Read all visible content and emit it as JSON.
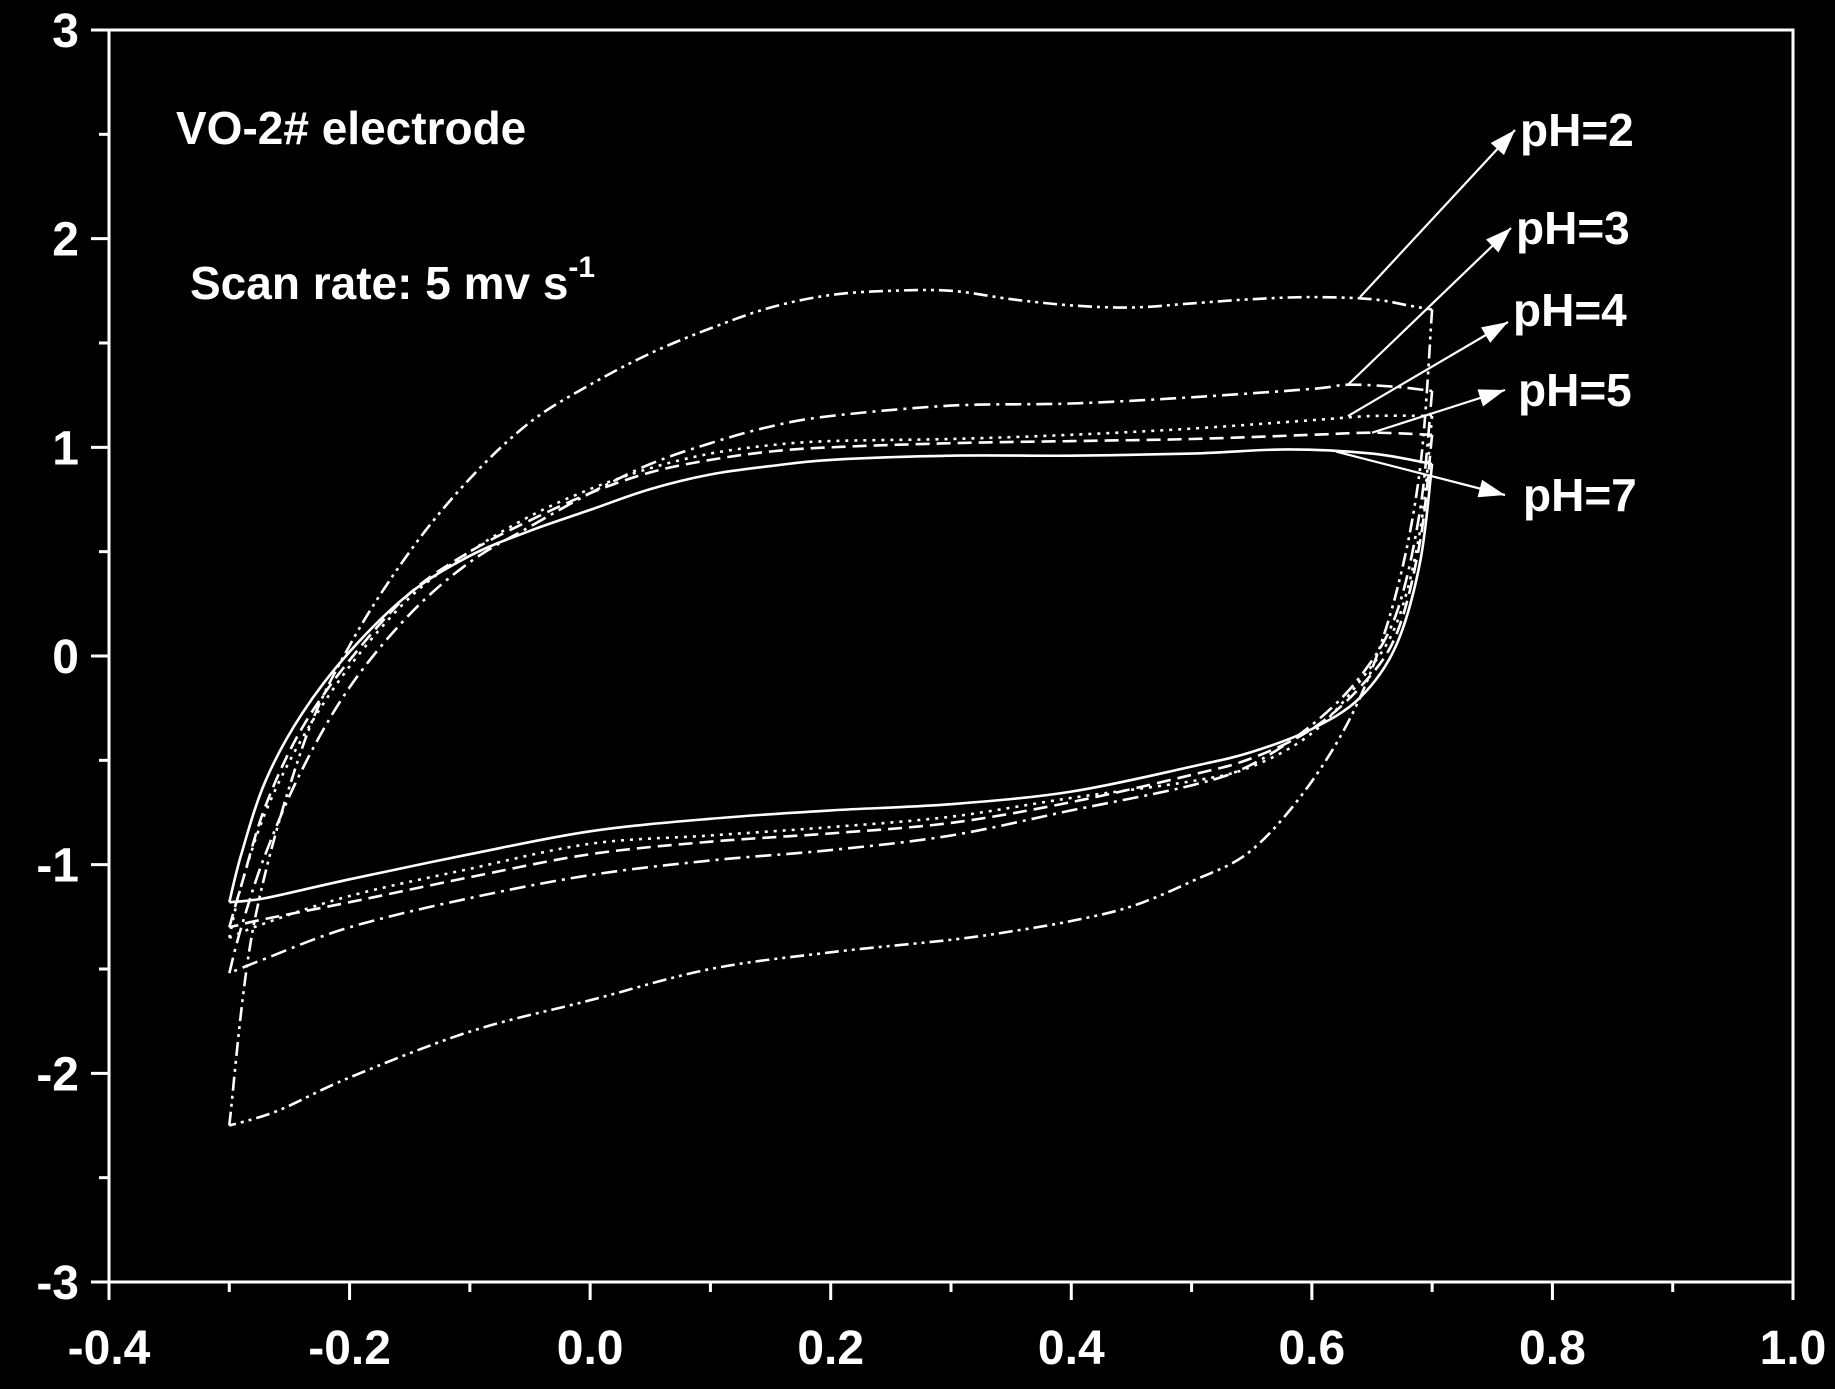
{
  "chart_data": {
    "type": "line",
    "title": "",
    "xlabel": "",
    "ylabel": "",
    "xlim": [
      -0.4,
      1.0
    ],
    "ylim": [
      -3,
      3
    ],
    "x_ticks": [
      "-0.4",
      "-0.2",
      "0.0",
      "0.2",
      "0.4",
      "0.6",
      "0.8",
      "1.0"
    ],
    "y_ticks": [
      "-3",
      "-2",
      "-1",
      "0",
      "1",
      "2",
      "3"
    ],
    "grid": false,
    "background_color": "#000000",
    "foreground_color": "#ffffff",
    "annotations": {
      "electrode": "VO-2# electrode",
      "scan_rate": "Scan rate: 5 mv s",
      "scan_rate_superscript": "-1"
    },
    "series": [
      {
        "name": "pH=2",
        "dash": "dash-dot-dot",
        "upper": [
          [
            -0.3,
            -2.25
          ],
          [
            -0.28,
            -1.3
          ],
          [
            -0.24,
            -0.45
          ],
          [
            -0.2,
            0.05
          ],
          [
            -0.15,
            0.5
          ],
          [
            -0.1,
            0.85
          ],
          [
            -0.05,
            1.12
          ],
          [
            0.0,
            1.3
          ],
          [
            0.05,
            1.45
          ],
          [
            0.1,
            1.57
          ],
          [
            0.15,
            1.67
          ],
          [
            0.2,
            1.73
          ],
          [
            0.25,
            1.75
          ],
          [
            0.3,
            1.75
          ],
          [
            0.35,
            1.71
          ],
          [
            0.4,
            1.68
          ],
          [
            0.45,
            1.67
          ],
          [
            0.5,
            1.69
          ],
          [
            0.55,
            1.71
          ],
          [
            0.6,
            1.72
          ],
          [
            0.65,
            1.71
          ],
          [
            0.68,
            1.68
          ],
          [
            0.7,
            1.66
          ]
        ],
        "lower": [
          [
            0.7,
            1.66
          ],
          [
            0.69,
            0.9
          ],
          [
            0.67,
            0.3
          ],
          [
            0.64,
            -0.2
          ],
          [
            0.6,
            -0.6
          ],
          [
            0.55,
            -0.93
          ],
          [
            0.5,
            -1.08
          ],
          [
            0.45,
            -1.2
          ],
          [
            0.4,
            -1.27
          ],
          [
            0.35,
            -1.32
          ],
          [
            0.3,
            -1.36
          ],
          [
            0.2,
            -1.42
          ],
          [
            0.1,
            -1.5
          ],
          [
            0.0,
            -1.65
          ],
          [
            -0.1,
            -1.8
          ],
          [
            -0.2,
            -2.02
          ],
          [
            -0.26,
            -2.18
          ],
          [
            -0.3,
            -2.25
          ]
        ]
      },
      {
        "name": "pH=3",
        "dash": "dash-dot",
        "upper": [
          [
            -0.3,
            -1.52
          ],
          [
            -0.29,
            -1.3
          ],
          [
            -0.27,
            -0.95
          ],
          [
            -0.24,
            -0.55
          ],
          [
            -0.2,
            -0.15
          ],
          [
            -0.15,
            0.2
          ],
          [
            -0.1,
            0.45
          ],
          [
            -0.05,
            0.62
          ],
          [
            0.0,
            0.78
          ],
          [
            0.05,
            0.92
          ],
          [
            0.1,
            1.02
          ],
          [
            0.15,
            1.1
          ],
          [
            0.2,
            1.15
          ],
          [
            0.3,
            1.2
          ],
          [
            0.4,
            1.21
          ],
          [
            0.5,
            1.24
          ],
          [
            0.6,
            1.28
          ],
          [
            0.63,
            1.3
          ],
          [
            0.67,
            1.29
          ],
          [
            0.7,
            1.27
          ]
        ],
        "lower": [
          [
            0.7,
            1.27
          ],
          [
            0.69,
            0.7
          ],
          [
            0.67,
            0.2
          ],
          [
            0.64,
            -0.1
          ],
          [
            0.6,
            -0.33
          ],
          [
            0.55,
            -0.52
          ],
          [
            0.5,
            -0.62
          ],
          [
            0.4,
            -0.74
          ],
          [
            0.3,
            -0.86
          ],
          [
            0.2,
            -0.93
          ],
          [
            0.1,
            -0.98
          ],
          [
            0.0,
            -1.05
          ],
          [
            -0.1,
            -1.16
          ],
          [
            -0.2,
            -1.3
          ],
          [
            -0.27,
            -1.45
          ],
          [
            -0.3,
            -1.52
          ]
        ]
      },
      {
        "name": "pH=4",
        "dash": "dot",
        "upper": [
          [
            -0.3,
            -1.35
          ],
          [
            -0.29,
            -1.1
          ],
          [
            -0.27,
            -0.75
          ],
          [
            -0.24,
            -0.4
          ],
          [
            -0.2,
            -0.05
          ],
          [
            -0.15,
            0.28
          ],
          [
            -0.1,
            0.5
          ],
          [
            -0.05,
            0.67
          ],
          [
            0.0,
            0.8
          ],
          [
            0.05,
            0.9
          ],
          [
            0.1,
            0.97
          ],
          [
            0.15,
            1.01
          ],
          [
            0.2,
            1.03
          ],
          [
            0.3,
            1.04
          ],
          [
            0.4,
            1.06
          ],
          [
            0.5,
            1.09
          ],
          [
            0.6,
            1.13
          ],
          [
            0.65,
            1.15
          ],
          [
            0.7,
            1.15
          ]
        ],
        "lower": [
          [
            0.7,
            1.15
          ],
          [
            0.69,
            0.6
          ],
          [
            0.67,
            0.15
          ],
          [
            0.64,
            -0.12
          ],
          [
            0.6,
            -0.37
          ],
          [
            0.55,
            -0.53
          ],
          [
            0.5,
            -0.6
          ],
          [
            0.4,
            -0.68
          ],
          [
            0.3,
            -0.77
          ],
          [
            0.2,
            -0.82
          ],
          [
            0.1,
            -0.86
          ],
          [
            0.0,
            -0.9
          ],
          [
            -0.1,
            -1.02
          ],
          [
            -0.2,
            -1.15
          ],
          [
            -0.27,
            -1.28
          ],
          [
            -0.3,
            -1.35
          ]
        ]
      },
      {
        "name": "pH=5",
        "dash": "dash",
        "upper": [
          [
            -0.3,
            -1.3
          ],
          [
            -0.29,
            -1.1
          ],
          [
            -0.27,
            -0.72
          ],
          [
            -0.24,
            -0.35
          ],
          [
            -0.2,
            -0.02
          ],
          [
            -0.15,
            0.3
          ],
          [
            -0.1,
            0.5
          ],
          [
            -0.05,
            0.65
          ],
          [
            0.0,
            0.78
          ],
          [
            0.05,
            0.88
          ],
          [
            0.1,
            0.94
          ],
          [
            0.15,
            0.98
          ],
          [
            0.2,
            1.0
          ],
          [
            0.3,
            1.02
          ],
          [
            0.4,
            1.03
          ],
          [
            0.5,
            1.04
          ],
          [
            0.6,
            1.06
          ],
          [
            0.65,
            1.07
          ],
          [
            0.7,
            1.06
          ]
        ],
        "lower": [
          [
            0.7,
            1.06
          ],
          [
            0.69,
            0.55
          ],
          [
            0.67,
            0.1
          ],
          [
            0.64,
            -0.15
          ],
          [
            0.6,
            -0.35
          ],
          [
            0.55,
            -0.49
          ],
          [
            0.5,
            -0.57
          ],
          [
            0.4,
            -0.7
          ],
          [
            0.3,
            -0.8
          ],
          [
            0.2,
            -0.85
          ],
          [
            0.1,
            -0.89
          ],
          [
            0.0,
            -0.95
          ],
          [
            -0.1,
            -1.06
          ],
          [
            -0.2,
            -1.18
          ],
          [
            -0.27,
            -1.26
          ],
          [
            -0.3,
            -1.3
          ]
        ]
      },
      {
        "name": "pH=7",
        "dash": "solid",
        "upper": [
          [
            -0.3,
            -1.18
          ],
          [
            -0.29,
            -0.95
          ],
          [
            -0.27,
            -0.6
          ],
          [
            -0.24,
            -0.28
          ],
          [
            -0.2,
            0.02
          ],
          [
            -0.15,
            0.3
          ],
          [
            -0.1,
            0.48
          ],
          [
            -0.05,
            0.6
          ],
          [
            0.0,
            0.7
          ],
          [
            0.05,
            0.8
          ],
          [
            0.1,
            0.87
          ],
          [
            0.15,
            0.91
          ],
          [
            0.2,
            0.94
          ],
          [
            0.3,
            0.96
          ],
          [
            0.4,
            0.96
          ],
          [
            0.5,
            0.97
          ],
          [
            0.58,
            0.99
          ],
          [
            0.65,
            0.97
          ],
          [
            0.7,
            0.92
          ]
        ],
        "lower": [
          [
            0.7,
            0.92
          ],
          [
            0.69,
            0.45
          ],
          [
            0.67,
            0.05
          ],
          [
            0.64,
            -0.2
          ],
          [
            0.6,
            -0.35
          ],
          [
            0.55,
            -0.46
          ],
          [
            0.5,
            -0.53
          ],
          [
            0.4,
            -0.65
          ],
          [
            0.3,
            -0.71
          ],
          [
            0.2,
            -0.74
          ],
          [
            0.1,
            -0.78
          ],
          [
            0.0,
            -0.84
          ],
          [
            -0.1,
            -0.95
          ],
          [
            -0.2,
            -1.07
          ],
          [
            -0.27,
            -1.16
          ],
          [
            -0.3,
            -1.18
          ]
        ]
      }
    ]
  }
}
